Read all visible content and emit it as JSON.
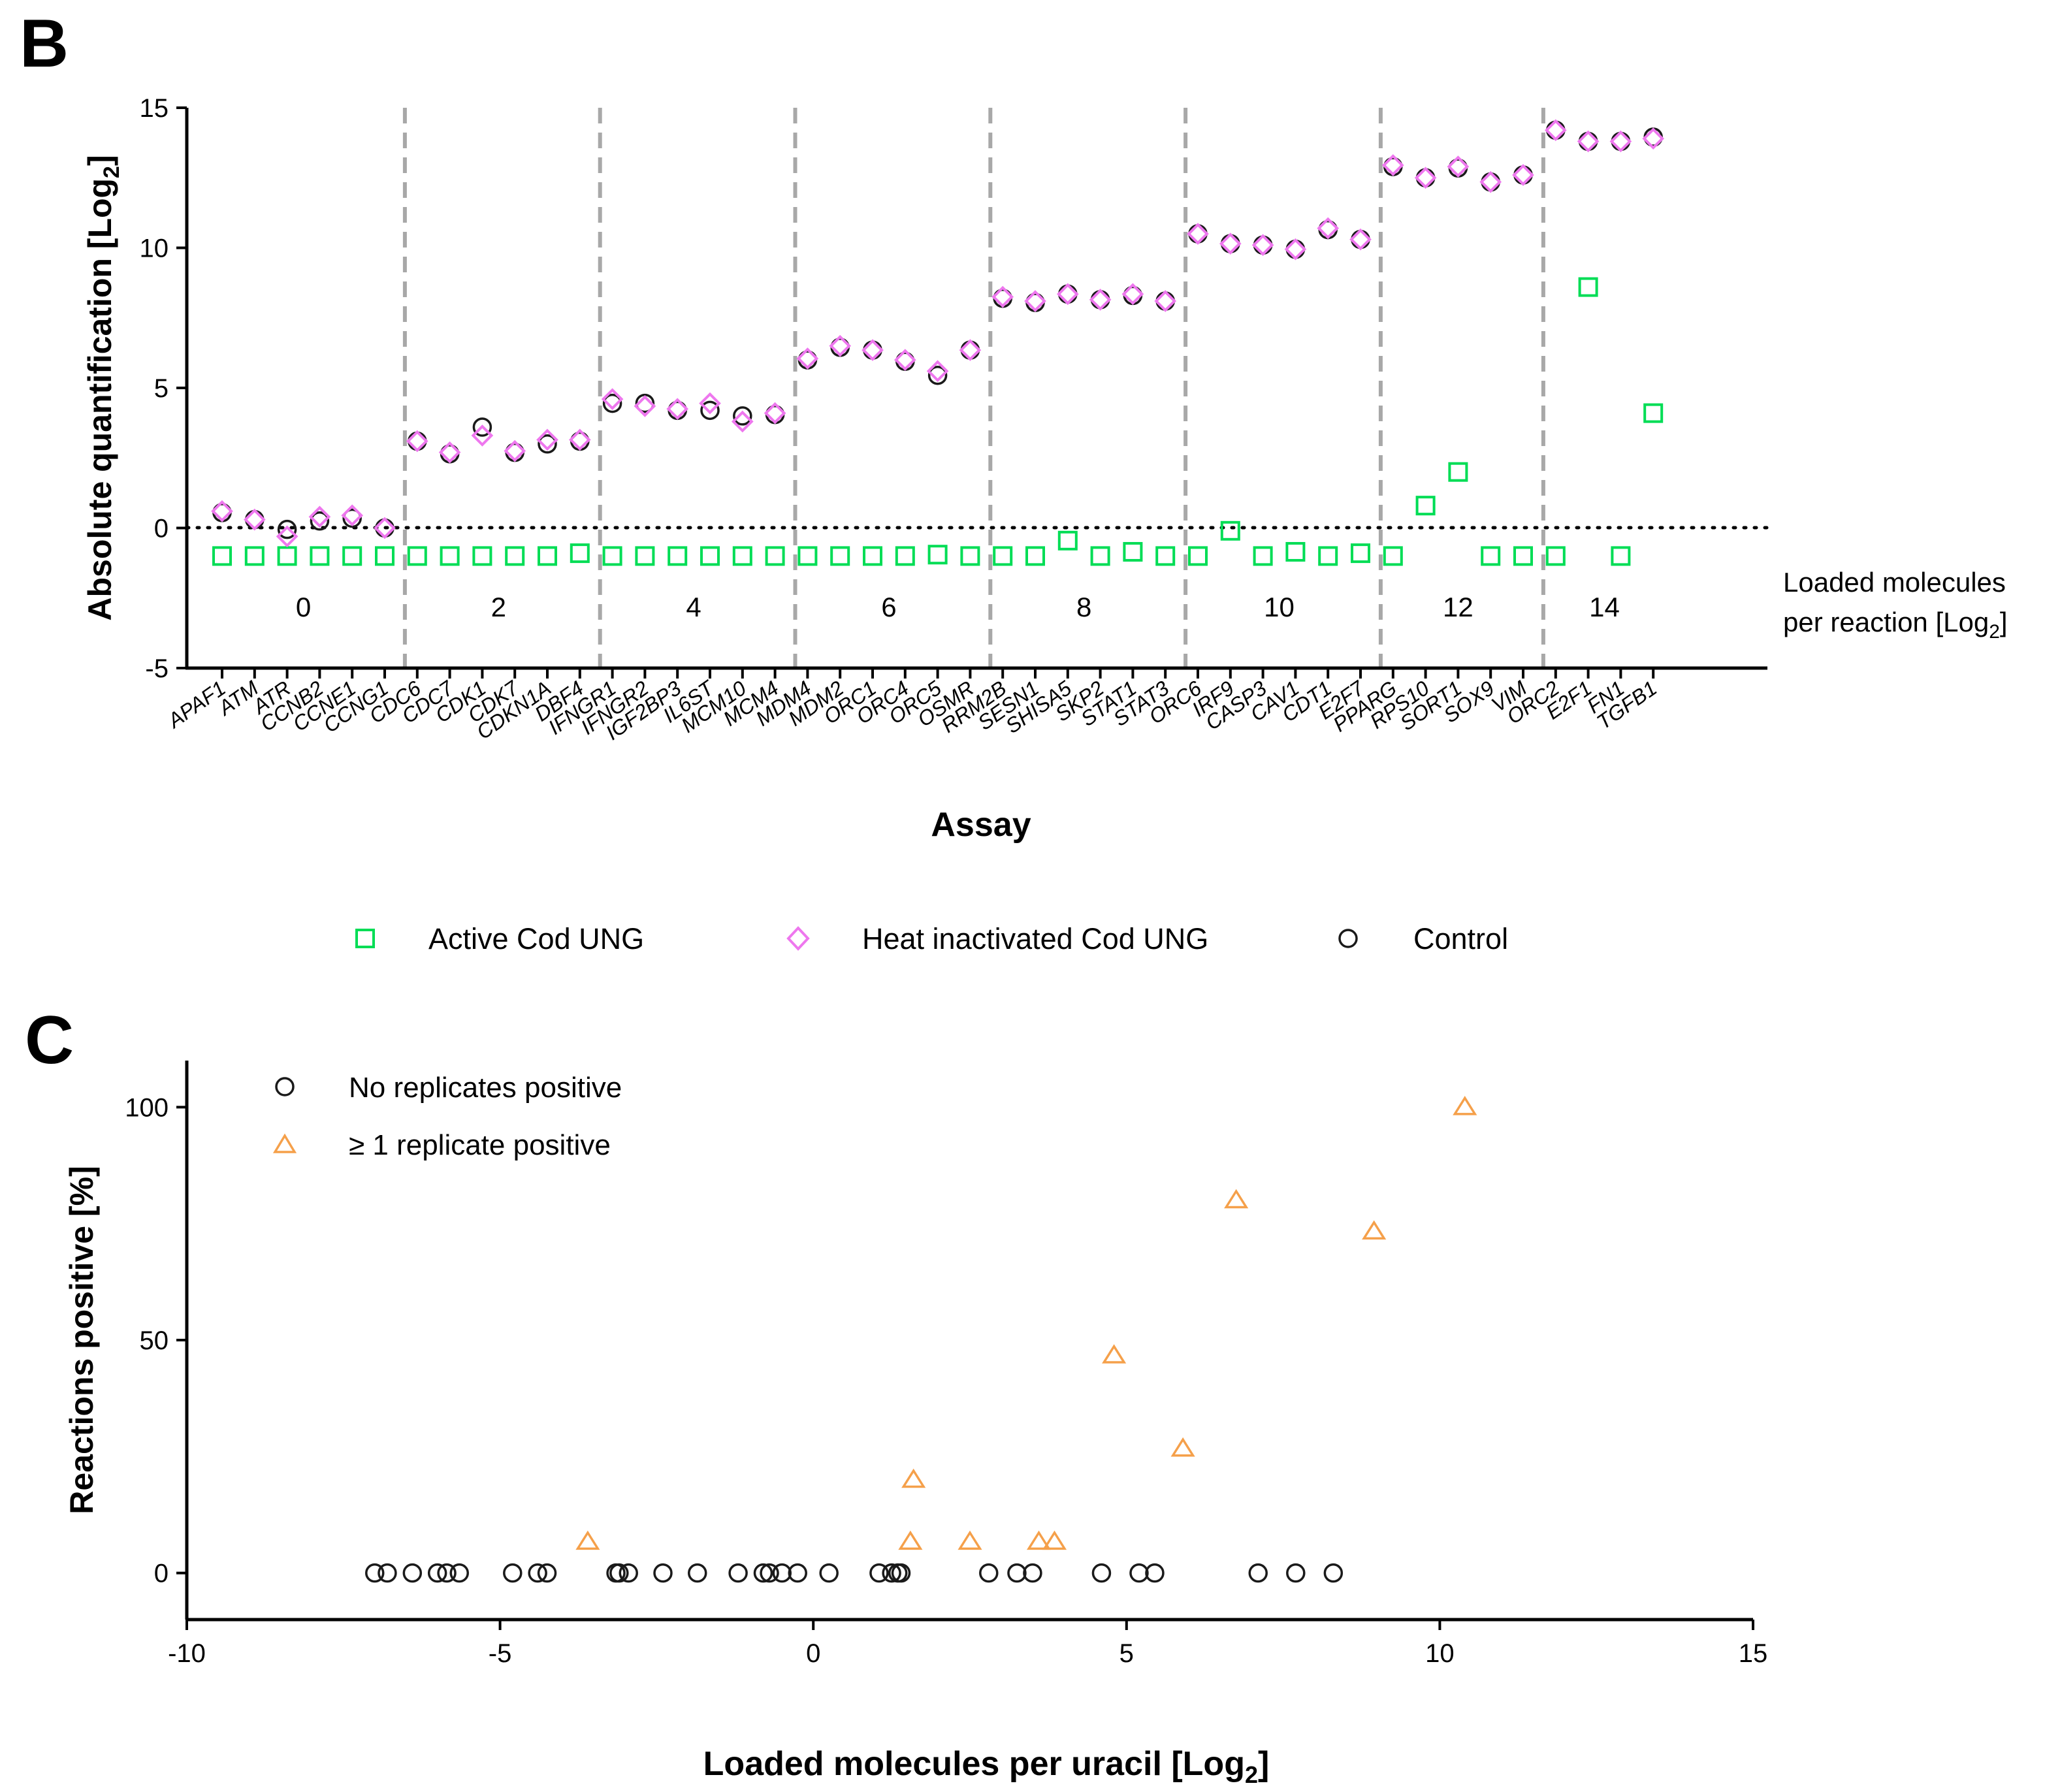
{
  "colors": {
    "active": "#00dd55",
    "heat": "#ee77ee",
    "control": "#1a1a1a",
    "orange": "#f5a04a",
    "grid": "#a8a8a8",
    "axis": "#000000"
  },
  "chart_data": [
    {
      "panel_label": "B",
      "type": "scatter",
      "title": "",
      "xlabel": "Assay",
      "ylabel_main": "Absolute quantification [Log",
      "ylabel_sub": "2",
      "ylabel_end": "]",
      "ylim": [
        -5,
        15
      ],
      "y_ticks": [
        "15",
        "10",
        "5",
        "0",
        "-5"
      ],
      "y_tick_values": [
        15,
        10,
        5,
        0,
        -5
      ],
      "reference_line_y": 0,
      "group_axis_label_line1": "Loaded molecules",
      "group_axis_label_line2_main": "per reaction [Log",
      "group_axis_label_line2_sub": "2",
      "group_axis_label_line2_end": "]",
      "groups": [
        {
          "label": "0",
          "assays": [
            "APAF1",
            "ATM",
            "ATR",
            "CCNB2",
            "CCNE1",
            "CCNG1"
          ]
        },
        {
          "label": "2",
          "assays": [
            "CDC6",
            "CDC7",
            "CDK1",
            "CDK7",
            "CDKN1A",
            "DBF4"
          ]
        },
        {
          "label": "4",
          "assays": [
            "IFNGR1",
            "IFNGR2",
            "IGF2BP3",
            "IL6ST",
            "MCM10",
            "MCM4"
          ]
        },
        {
          "label": "6",
          "assays": [
            "MDM4",
            "MDM2",
            "ORC1",
            "ORC4",
            "ORC5",
            "OSMR"
          ]
        },
        {
          "label": "8",
          "assays": [
            "RRM2B",
            "SESN1",
            "SHISA5",
            "SKP2",
            "STAT1",
            "STAT3"
          ]
        },
        {
          "label": "10",
          "assays": [
            "ORC6",
            "IRF9",
            "CASP3",
            "CAV1",
            "CDT1",
            "E2F7"
          ]
        },
        {
          "label": "12",
          "assays": [
            "PPARG",
            "RPS10",
            "SORT1",
            "SOX9",
            "VIM"
          ]
        },
        {
          "label": "14",
          "assays": [
            "ORC2",
            "E2F1",
            "FN1",
            "TGFB1"
          ]
        }
      ],
      "series": [
        {
          "name": "Active Cod UNG",
          "marker": "square",
          "values": [
            -1,
            -1,
            -1,
            -1,
            -1,
            -1,
            -1,
            -1,
            -1,
            -1,
            -1,
            -0.9,
            -1,
            -1,
            -1,
            -1,
            -1,
            -1,
            -1,
            -1,
            -1,
            -1,
            -0.95,
            -1,
            -1,
            -1,
            -0.45,
            -1,
            -0.85,
            -1,
            -1,
            -0.1,
            -1,
            -0.85,
            -1,
            -0.9,
            -1,
            0.8,
            2.0,
            -1,
            -1,
            -1,
            8.6,
            -1,
            4.1
          ]
        },
        {
          "name": "Heat inactivated Cod UNG",
          "marker": "diamond",
          "values": [
            0.6,
            0.3,
            -0.3,
            0.4,
            0.45,
            0.0,
            3.1,
            2.7,
            3.3,
            2.75,
            3.15,
            3.15,
            4.6,
            4.35,
            4.25,
            4.45,
            3.8,
            4.1,
            6.05,
            6.5,
            6.35,
            6.0,
            5.6,
            6.35,
            8.25,
            8.1,
            8.35,
            8.15,
            8.35,
            8.1,
            10.5,
            10.15,
            10.1,
            9.95,
            10.7,
            10.3,
            12.95,
            12.5,
            12.9,
            12.35,
            12.6,
            14.2,
            13.8,
            13.8,
            13.9
          ]
        },
        {
          "name": "Control",
          "marker": "circle",
          "values": [
            0.55,
            0.3,
            -0.05,
            0.25,
            0.35,
            0.0,
            3.1,
            2.65,
            3.6,
            2.7,
            3.0,
            3.1,
            4.45,
            4.45,
            4.2,
            4.2,
            4.0,
            4.05,
            6.0,
            6.45,
            6.35,
            5.95,
            5.45,
            6.35,
            8.2,
            8.05,
            8.35,
            8.15,
            8.3,
            8.1,
            10.5,
            10.15,
            10.1,
            9.95,
            10.65,
            10.3,
            12.9,
            12.5,
            12.85,
            12.35,
            12.6,
            14.2,
            13.8,
            13.8,
            13.95
          ]
        }
      ],
      "legend": [
        "Active Cod UNG",
        "Heat inactivated Cod UNG",
        "Control"
      ]
    },
    {
      "panel_label": "C",
      "type": "scatter",
      "title": "",
      "xlabel_main": "Loaded molecules per uracil [Log",
      "xlabel_sub": "2",
      "xlabel_end": "]",
      "ylabel": "Reactions positive [%]",
      "xlim": [
        -10,
        15
      ],
      "ylim": [
        -10,
        110
      ],
      "x_ticks": [
        "-10",
        "-5",
        "0",
        "5",
        "10",
        "15"
      ],
      "x_tick_values": [
        -10,
        -5,
        0,
        5,
        10,
        15
      ],
      "y_ticks": [
        "100",
        "50",
        "0"
      ],
      "y_tick_values": [
        100,
        50,
        0
      ],
      "legend_placement": "top-left",
      "series": [
        {
          "name": "No replicates positive",
          "marker": "circle",
          "x": [
            -7.0,
            -6.8,
            -6.4,
            -6.0,
            -5.85,
            -5.65,
            -4.8,
            -4.4,
            -4.25,
            -3.15,
            -3.1,
            -2.95,
            -2.4,
            -1.85,
            -1.2,
            -0.8,
            -0.7,
            -0.5,
            -0.25,
            0.25,
            1.05,
            1.25,
            1.35,
            1.4,
            2.8,
            3.25,
            3.5,
            4.6,
            5.2,
            5.45,
            7.1,
            7.7,
            8.3
          ],
          "y": [
            0,
            0,
            0,
            0,
            0,
            0,
            0,
            0,
            0,
            0,
            0,
            0,
            0,
            0,
            0,
            0,
            0,
            0,
            0,
            0,
            0,
            0,
            0,
            0,
            0,
            0,
            0,
            0,
            0,
            0,
            0,
            0,
            0
          ]
        },
        {
          "name": "≥ 1 replicate positive",
          "marker": "triangle",
          "x": [
            -3.6,
            1.55,
            1.6,
            2.5,
            3.6,
            3.85,
            4.8,
            5.9,
            6.75,
            8.95,
            10.4
          ],
          "y": [
            6.7,
            6.7,
            20,
            6.7,
            6.7,
            6.7,
            46.7,
            26.7,
            80,
            73.3,
            100
          ]
        }
      ]
    }
  ]
}
